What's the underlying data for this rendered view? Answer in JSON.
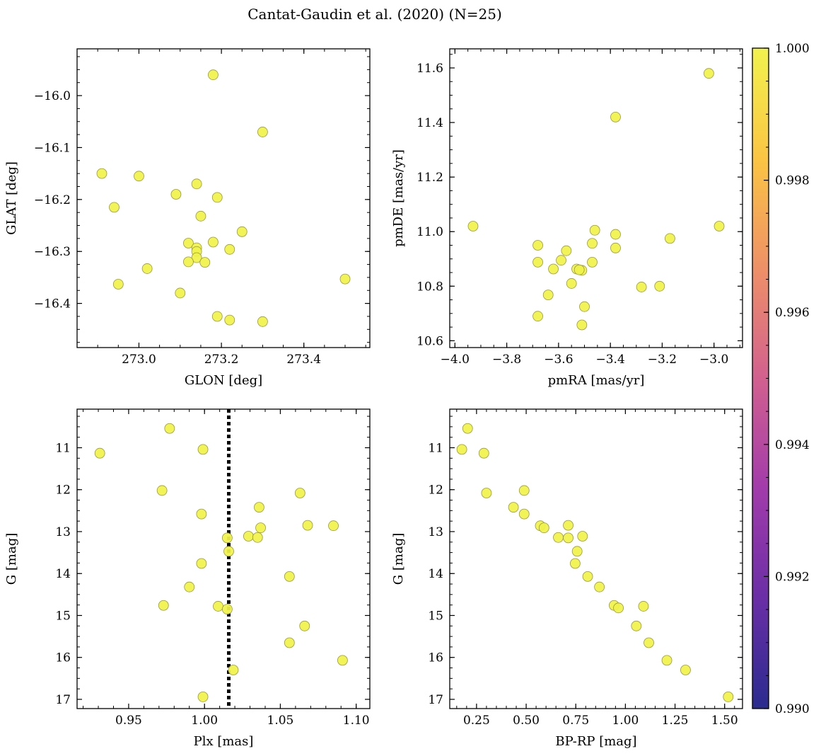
{
  "figure": {
    "title": "Cantat-Gaudin et al. (2020) (N=25)"
  },
  "colors": {
    "point_fill": "#f0f24a",
    "point_edge": "#9a9a3a",
    "frame": "#000000",
    "vline": "#000000"
  },
  "colorbar": {
    "min": 0.99,
    "max": 1.0,
    "ticks": [
      0.99,
      0.992,
      0.994,
      0.996,
      0.998,
      1.0
    ],
    "tick_labels": [
      "0.990",
      "0.992",
      "0.994",
      "0.996",
      "0.998",
      "1.000"
    ],
    "stops": [
      "#2a2b8f",
      "#6a2ea6",
      "#a23bab",
      "#d2608f",
      "#ee9067",
      "#fbc543",
      "#f1f24e"
    ]
  },
  "chart_data": [
    {
      "id": "glon-glat",
      "type": "scatter",
      "title": "",
      "xlabel": "GLON [deg]",
      "ylabel": "GLAT [deg]",
      "xlim": [
        272.85,
        273.56
      ],
      "ylim": [
        -16.485,
        -15.91
      ],
      "invert_y": false,
      "xticks": [
        273.0,
        273.2,
        273.4
      ],
      "xtick_labels": [
        "273.0",
        "273.2",
        "273.4"
      ],
      "yticks": [
        -16.4,
        -16.3,
        -16.2,
        -16.1,
        -16.0
      ],
      "ytick_labels": [
        "−16.4",
        "−16.3",
        "−16.2",
        "−16.1",
        "−16.0"
      ],
      "x_minor_step": 0.05,
      "y_minor_step": 0.025,
      "x": [
        273.18,
        273.3,
        272.91,
        273.0,
        273.14,
        273.09,
        273.19,
        272.94,
        273.15,
        273.25,
        273.12,
        273.18,
        273.14,
        273.22,
        273.14,
        273.14,
        273.12,
        273.16,
        273.02,
        272.95,
        273.5,
        273.1,
        273.19,
        273.22,
        273.3
      ],
      "y": [
        -15.96,
        -16.07,
        -16.15,
        -16.155,
        -16.17,
        -16.19,
        -16.196,
        -16.215,
        -16.232,
        -16.262,
        -16.284,
        -16.282,
        -16.293,
        -16.296,
        -16.3,
        -16.312,
        -16.32,
        -16.321,
        -16.333,
        -16.363,
        -16.353,
        -16.38,
        -16.425,
        -16.432,
        -16.435
      ]
    },
    {
      "id": "pmra-pmde",
      "type": "scatter",
      "title": "",
      "xlabel": "pmRA [mas/yr]",
      "ylabel": "pmDE [mas/yr]",
      "xlim": [
        -4.02,
        -2.89
      ],
      "ylim": [
        10.575,
        11.67
      ],
      "invert_y": false,
      "xticks": [
        -4.0,
        -3.8,
        -3.6,
        -3.4,
        -3.2,
        -3.0
      ],
      "xtick_labels": [
        "−4.0",
        "−3.8",
        "−3.6",
        "−3.4",
        "−3.2",
        "−3.0"
      ],
      "yticks": [
        10.6,
        10.8,
        11.0,
        11.2,
        11.4,
        11.6
      ],
      "ytick_labels": [
        "10.6",
        "10.8",
        "11.0",
        "11.2",
        "11.4",
        "11.6"
      ],
      "x_minor_step": 0.05,
      "y_minor_step": 0.05,
      "x": [
        -3.02,
        -3.38,
        -3.93,
        -2.98,
        -3.46,
        -3.38,
        -3.17,
        -3.68,
        -3.47,
        -3.38,
        -3.57,
        -3.59,
        -3.68,
        -3.62,
        -3.53,
        -3.47,
        -3.51,
        -3.55,
        -3.21,
        -3.28,
        -3.64,
        -3.5,
        -3.68,
        -3.51,
        -3.52
      ],
      "y": [
        11.58,
        11.42,
        11.02,
        11.02,
        11.005,
        10.99,
        10.975,
        10.95,
        10.957,
        10.94,
        10.93,
        10.895,
        10.888,
        10.863,
        10.863,
        10.888,
        10.858,
        10.81,
        10.8,
        10.797,
        10.768,
        10.725,
        10.69,
        10.658,
        10.86
      ]
    },
    {
      "id": "plx-g",
      "type": "scatter",
      "title": "",
      "xlabel": "Plx [mas]",
      "ylabel": "G [mag]",
      "xlim": [
        0.916,
        1.109
      ],
      "ylim": [
        10.08,
        17.22
      ],
      "invert_y": true,
      "xticks": [
        0.95,
        1.0,
        1.05,
        1.1
      ],
      "xtick_labels": [
        "0.95",
        "1.00",
        "1.05",
        "1.10"
      ],
      "yticks": [
        11,
        12,
        13,
        14,
        15,
        16,
        17
      ],
      "ytick_labels": [
        "11",
        "12",
        "13",
        "14",
        "15",
        "16",
        "17"
      ],
      "x_minor_step": 0.01,
      "y_minor_step": 0.25,
      "vline": 1.016,
      "x": [
        0.931,
        0.977,
        0.999,
        0.972,
        1.063,
        0.998,
        1.036,
        1.068,
        1.085,
        1.037,
        1.029,
        1.035,
        1.015,
        1.016,
        0.998,
        1.056,
        0.99,
        0.973,
        1.009,
        1.015,
        1.066,
        1.056,
        1.091,
        1.019,
        0.999
      ],
      "y": [
        11.13,
        10.54,
        11.04,
        12.02,
        12.08,
        12.58,
        12.42,
        12.85,
        12.86,
        12.91,
        13.11,
        13.14,
        13.15,
        13.47,
        13.76,
        14.07,
        14.32,
        14.76,
        14.78,
        14.85,
        15.25,
        15.65,
        16.07,
        16.3,
        16.94
      ]
    },
    {
      "id": "bprp-g",
      "type": "scatter",
      "title": "",
      "xlabel": "BP-RP [mag]",
      "ylabel": "G [mag]",
      "xlim": [
        0.115,
        1.59
      ],
      "ylim": [
        10.08,
        17.22
      ],
      "invert_y": true,
      "xticks": [
        0.25,
        0.5,
        0.75,
        1.0,
        1.25,
        1.5
      ],
      "xtick_labels": [
        "0.25",
        "0.50",
        "0.75",
        "1.00",
        "1.25",
        "1.50"
      ],
      "yticks": [
        11,
        12,
        13,
        14,
        15,
        16,
        17
      ],
      "ytick_labels": [
        "11",
        "12",
        "13",
        "14",
        "15",
        "16",
        "17"
      ],
      "x_minor_step": 0.05,
      "y_minor_step": 0.25,
      "x": [
        0.205,
        0.176,
        0.287,
        0.3,
        0.49,
        0.436,
        0.49,
        0.571,
        0.59,
        0.712,
        0.662,
        0.784,
        0.712,
        0.757,
        0.747,
        0.81,
        0.869,
        0.943,
        0.965,
        1.091,
        1.055,
        1.118,
        1.209,
        1.303,
        1.518
      ],
      "y": [
        10.54,
        11.04,
        11.13,
        12.08,
        12.02,
        12.42,
        12.58,
        12.86,
        12.91,
        12.85,
        13.14,
        13.11,
        13.15,
        13.47,
        13.76,
        14.07,
        14.32,
        14.76,
        14.82,
        14.78,
        15.25,
        15.65,
        16.07,
        16.3,
        16.94
      ]
    }
  ]
}
